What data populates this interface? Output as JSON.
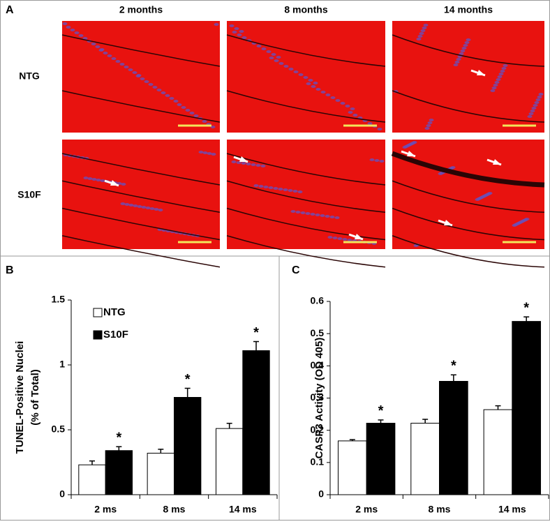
{
  "panel_a": {
    "label": "A",
    "columns": [
      "2 months",
      "8 months",
      "14 months"
    ],
    "rows": [
      "NTG",
      "S10F"
    ]
  },
  "chart_data": [
    {
      "type": "bar",
      "panel_label": "B",
      "ylabel": [
        "TUNEL-Positive Nuclei",
        "(% of Total)"
      ],
      "categories": [
        "2 ms",
        "8 ms",
        "14 ms"
      ],
      "series": [
        {
          "name": "NTG",
          "color": "#ffffff",
          "values": [
            0.23,
            0.32,
            0.51
          ],
          "errors": [
            0.03,
            0.03,
            0.04
          ]
        },
        {
          "name": "S10F",
          "color": "#000000",
          "values": [
            0.34,
            0.75,
            1.11
          ],
          "errors": [
            0.03,
            0.07,
            0.07
          ],
          "annotations": [
            "*",
            "*",
            "*"
          ]
        }
      ],
      "ylim": [
        0,
        1.5
      ],
      "yticks": [
        0,
        0.5,
        1,
        1.5
      ],
      "legend": "upper left"
    },
    {
      "type": "bar",
      "panel_label": "C",
      "ylabel": [
        "CASP3 Activity (OD 405)"
      ],
      "categories": [
        "2 ms",
        "8 ms",
        "14 ms"
      ],
      "series": [
        {
          "name": "NTG",
          "color": "#ffffff",
          "values": [
            0.167,
            0.222,
            0.264
          ],
          "errors": [
            0.004,
            0.012,
            0.012
          ]
        },
        {
          "name": "S10F",
          "color": "#000000",
          "values": [
            0.222,
            0.352,
            0.538
          ],
          "errors": [
            0.01,
            0.02,
            0.014
          ],
          "annotations": [
            "*",
            "*",
            "*"
          ]
        }
      ],
      "ylim": [
        0,
        0.6
      ],
      "yticks": [
        0,
        0.1,
        0.2,
        0.3,
        0.4,
        0.5,
        0.6
      ],
      "legend": false
    }
  ]
}
